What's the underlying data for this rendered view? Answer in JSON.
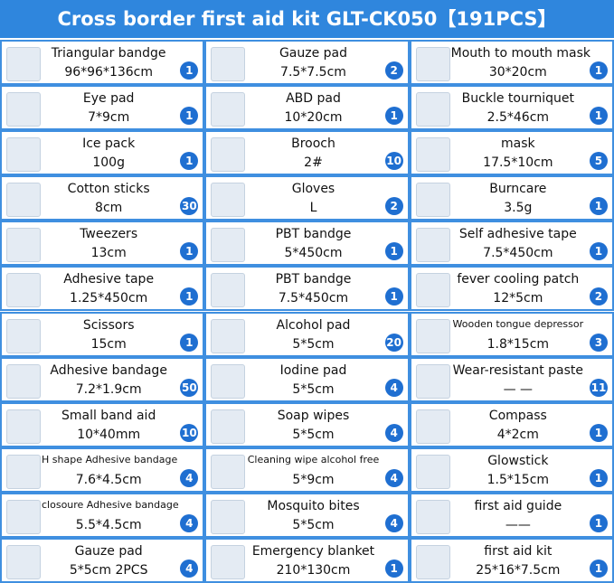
{
  "header": {
    "title": "Cross border first aid kit GLT-CK050【191PCS】"
  },
  "columns": [
    [
      {
        "name": "Triangular bandge",
        "size": "96*96*136cm",
        "count": 1
      },
      {
        "name": "Eye pad",
        "size": "7*9cm",
        "count": 1
      },
      {
        "name": "Ice pack",
        "size": "100g",
        "count": 1
      },
      {
        "name": "Cotton sticks",
        "size": "8cm",
        "count": 30
      },
      {
        "name": "Tweezers",
        "size": "13cm",
        "count": 1
      },
      {
        "name": "Adhesive tape",
        "size": "1.25*450cm",
        "count": 1
      },
      {
        "name": "Scissors",
        "size": "15cm",
        "count": 1
      },
      {
        "name": "Adhesive bandage",
        "size": "7.2*1.9cm",
        "count": 50
      },
      {
        "name": "Small band aid",
        "size": "10*40mm",
        "count": 10
      },
      {
        "name": "H shape Adhesive bandage",
        "size": "7.6*4.5cm",
        "count": 4
      },
      {
        "name": "closoure Adhesive bandage",
        "size": "5.5*4.5cm",
        "count": 4
      },
      {
        "name": "Gauze pad",
        "size": "5*5cm 2PCS",
        "count": 4
      }
    ],
    [
      {
        "name": "Gauze pad",
        "size": "7.5*7.5cm",
        "count": 2
      },
      {
        "name": "ABD pad",
        "size": "10*20cm",
        "count": 1
      },
      {
        "name": "Brooch",
        "size": "2#",
        "count": 10
      },
      {
        "name": "Gloves",
        "size": "L",
        "count": 2
      },
      {
        "name": "PBT bandge",
        "size": "5*450cm",
        "count": 1
      },
      {
        "name": "PBT bandge",
        "size": "7.5*450cm",
        "count": 1
      },
      {
        "name": "Alcohol pad",
        "size": "5*5cm",
        "count": 20
      },
      {
        "name": "Iodine pad",
        "size": "5*5cm",
        "count": 4
      },
      {
        "name": "Soap wipes",
        "size": "5*5cm",
        "count": 4
      },
      {
        "name": "Cleaning wipe alcohol free",
        "size": "5*9cm",
        "count": 4
      },
      {
        "name": "Mosquito bites",
        "size": "5*5cm",
        "count": 4
      },
      {
        "name": "Emergency  blanket",
        "size": "210*130cm",
        "count": 1
      }
    ],
    [
      {
        "name": "Mouth to mouth mask",
        "size": "30*20cm",
        "count": 1
      },
      {
        "name": "Buckle tourniquet",
        "size": "2.5*46cm",
        "count": 1
      },
      {
        "name": "mask",
        "size": "17.5*10cm",
        "count": 5
      },
      {
        "name": "Burncare",
        "size": "3.5g",
        "count": 1
      },
      {
        "name": "Self adhesive tape",
        "size": "7.5*450cm",
        "count": 1
      },
      {
        "name": "fever cooling patch",
        "size": "12*5cm",
        "count": 2
      },
      {
        "name": "Wooden tongue depressor",
        "size": "1.8*15cm",
        "count": 3
      },
      {
        "name": "Wear-resistant paste",
        "size": "— —",
        "count": 11
      },
      {
        "name": "Compass",
        "size": "4*2cm",
        "count": 1
      },
      {
        "name": "Glowstick",
        "size": "1.5*15cm",
        "count": 1
      },
      {
        "name": "first aid guide",
        "size": "——",
        "count": 1
      },
      {
        "name": "first aid kit",
        "size": "25*16*7.5cm",
        "count": 1
      }
    ]
  ]
}
